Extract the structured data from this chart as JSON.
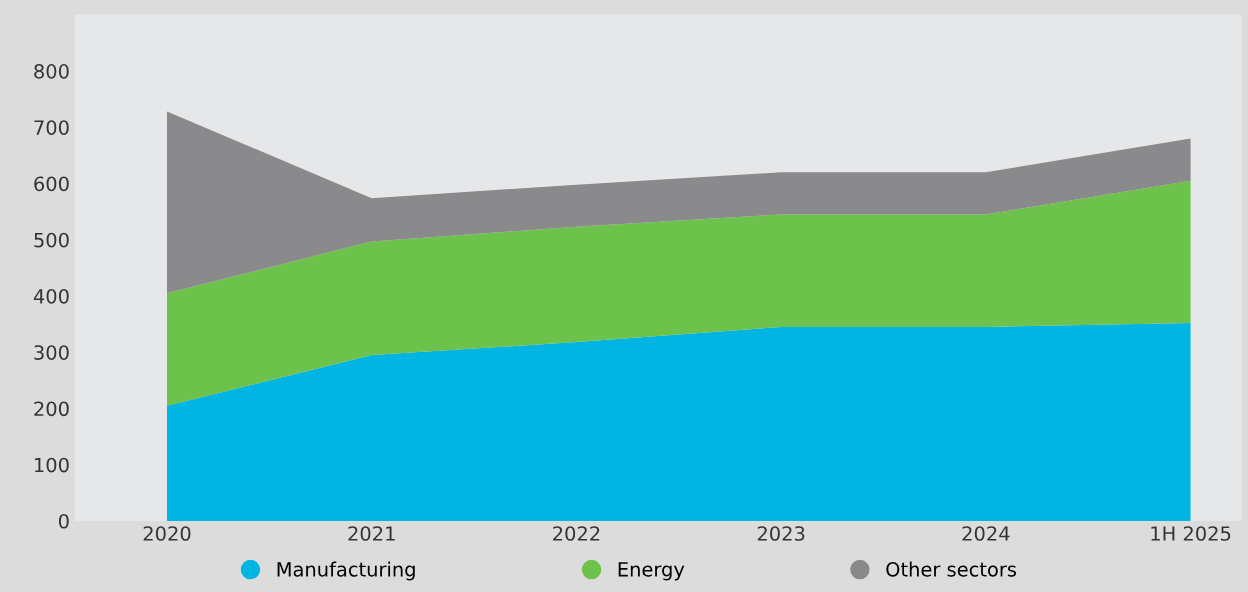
{
  "chart_data": {
    "type": "area",
    "stacked": true,
    "categories": [
      "2020",
      "2021",
      "2022",
      "2023",
      "2024",
      "1H 2025"
    ],
    "series": [
      {
        "name": "Manufacturing",
        "color": "#00b5e2",
        "values": [
          205,
          295,
          318,
          345,
          345,
          352
        ]
      },
      {
        "name": "Energy",
        "color": "#6cc24a",
        "values": [
          200,
          202,
          205,
          200,
          200,
          253
        ]
      },
      {
        "name": "Other sectors",
        "color": "#8a8a8c",
        "values": [
          323,
          77,
          75,
          75,
          75,
          75
        ]
      }
    ],
    "ylim": [
      0,
      900
    ],
    "yticks": [
      0,
      100,
      200,
      300,
      400,
      500,
      600,
      700,
      800
    ],
    "grid": false,
    "legend": "bottom"
  }
}
